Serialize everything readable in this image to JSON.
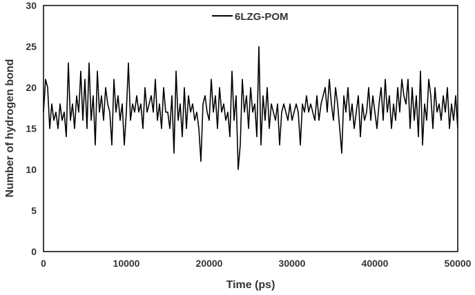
{
  "chart_data": {
    "type": "line",
    "title": "",
    "xlabel": "Time (ps)",
    "ylabel": "Number of hydrogen bond",
    "xlim": [
      0,
      50000
    ],
    "ylim": [
      0,
      30
    ],
    "xticks": [
      0,
      10000,
      20000,
      30000,
      40000,
      50000
    ],
    "yticks": [
      0,
      5,
      10,
      15,
      20,
      25,
      30
    ],
    "grid": false,
    "legend_position": "top-center",
    "x_step": 250,
    "series": [
      {
        "name": "6LZG-POM",
        "color": "#000000",
        "values": [
          17,
          21,
          20,
          15,
          18,
          16,
          17,
          15,
          18,
          16,
          17,
          14,
          23,
          16,
          18,
          15,
          19,
          17,
          22,
          16,
          21,
          15,
          23,
          16,
          19,
          13,
          22,
          17,
          19,
          16,
          20,
          18,
          17,
          13,
          21,
          17,
          19,
          16,
          18,
          13,
          17,
          23,
          16,
          18,
          17,
          19,
          17,
          18,
          15,
          20,
          17,
          18,
          19,
          17,
          21,
          16,
          18,
          15,
          20,
          17,
          17,
          15,
          19,
          12,
          22,
          16,
          18,
          14,
          20,
          15,
          19,
          17,
          18,
          16,
          17,
          15,
          11,
          18,
          19,
          17,
          16,
          21,
          17,
          19,
          15,
          20,
          17,
          18,
          16,
          17,
          14,
          22,
          16,
          19,
          10,
          13,
          21,
          17,
          19,
          15,
          20,
          17,
          18,
          14,
          25,
          13,
          19,
          16,
          20,
          15,
          18,
          17,
          16,
          18,
          13,
          17,
          18,
          17,
          16,
          18,
          16,
          17,
          18,
          17,
          13,
          18,
          17,
          19,
          17,
          18,
          17,
          16,
          19,
          16,
          18,
          19,
          20,
          17,
          21,
          18,
          16,
          20,
          18,
          15,
          12,
          19,
          17,
          20,
          16,
          18,
          15,
          17,
          19,
          14,
          18,
          16,
          17,
          20,
          16,
          19,
          17,
          15,
          18,
          20,
          16,
          21,
          17,
          19,
          15,
          18,
          16,
          20,
          17,
          21,
          19,
          18,
          21,
          15,
          20,
          16,
          19,
          14,
          22,
          13,
          18,
          16,
          21,
          19,
          15,
          20,
          17,
          18,
          16,
          19,
          17,
          20,
          15,
          18,
          16,
          19,
          15
        ]
      }
    ]
  }
}
